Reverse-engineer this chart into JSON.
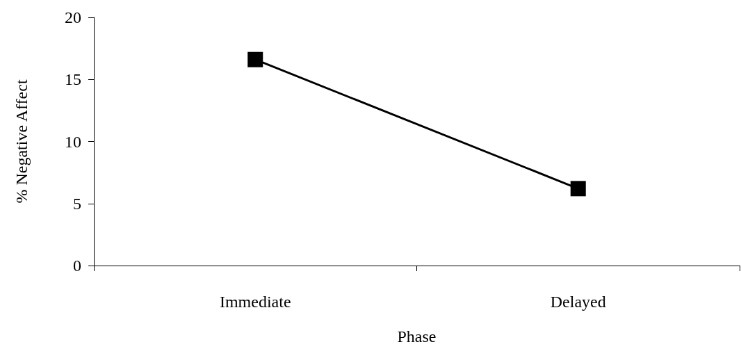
{
  "chart_data": {
    "type": "line",
    "xlabel": "Phase",
    "ylabel": "% Negative Affect",
    "categories": [
      "Immediate",
      "Delayed"
    ],
    "series": [
      {
        "color": "#000000",
        "values": [
          16.6,
          6.2
        ]
      }
    ],
    "ylim": [
      0,
      20
    ],
    "yticks": [
      0,
      5,
      10,
      15,
      20
    ],
    "grid": false,
    "marker": "square",
    "line_style": "solid"
  }
}
